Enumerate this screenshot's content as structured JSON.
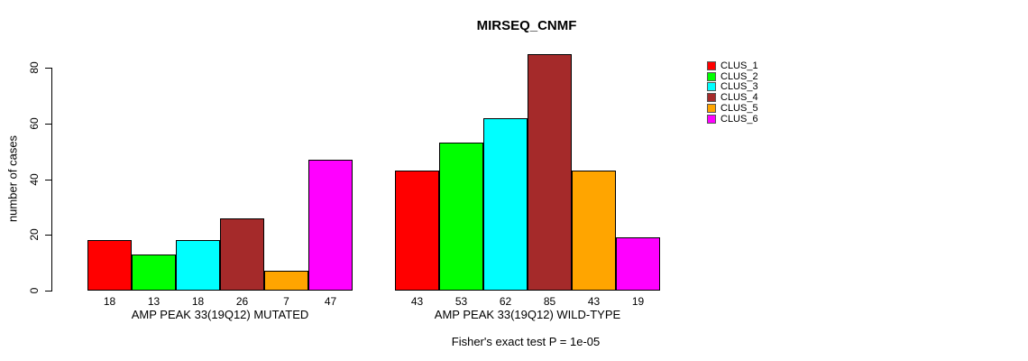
{
  "chart_data": {
    "type": "bar",
    "title": "MIRSEQ_CNMF",
    "ylabel": "number of cases",
    "xlabel": "",
    "ylim": [
      0,
      80
    ],
    "yticks": [
      0,
      20,
      40,
      60,
      80
    ],
    "grid": false,
    "legend_position": "right",
    "clusters": [
      {
        "label": "CLUS_1",
        "color": "#FF0000"
      },
      {
        "label": "CLUS_2",
        "color": "#00FF00"
      },
      {
        "label": "CLUS_3",
        "color": "#00FFFF"
      },
      {
        "label": "CLUS_4",
        "color": "#A52A2A"
      },
      {
        "label": "CLUS_5",
        "color": "#FFA500"
      },
      {
        "label": "CLUS_6",
        "color": "#FF00FF"
      }
    ],
    "groups": [
      {
        "label": "AMP PEAK 33(19Q12) MUTATED",
        "values": [
          18,
          13,
          18,
          26,
          7,
          47
        ]
      },
      {
        "label": "AMP PEAK 33(19Q12) WILD-TYPE",
        "values": [
          43,
          53,
          62,
          85,
          43,
          19
        ]
      }
    ],
    "bar_value_labels_shown": true,
    "footnote": "Fisher's exact test P = 1e-05"
  }
}
